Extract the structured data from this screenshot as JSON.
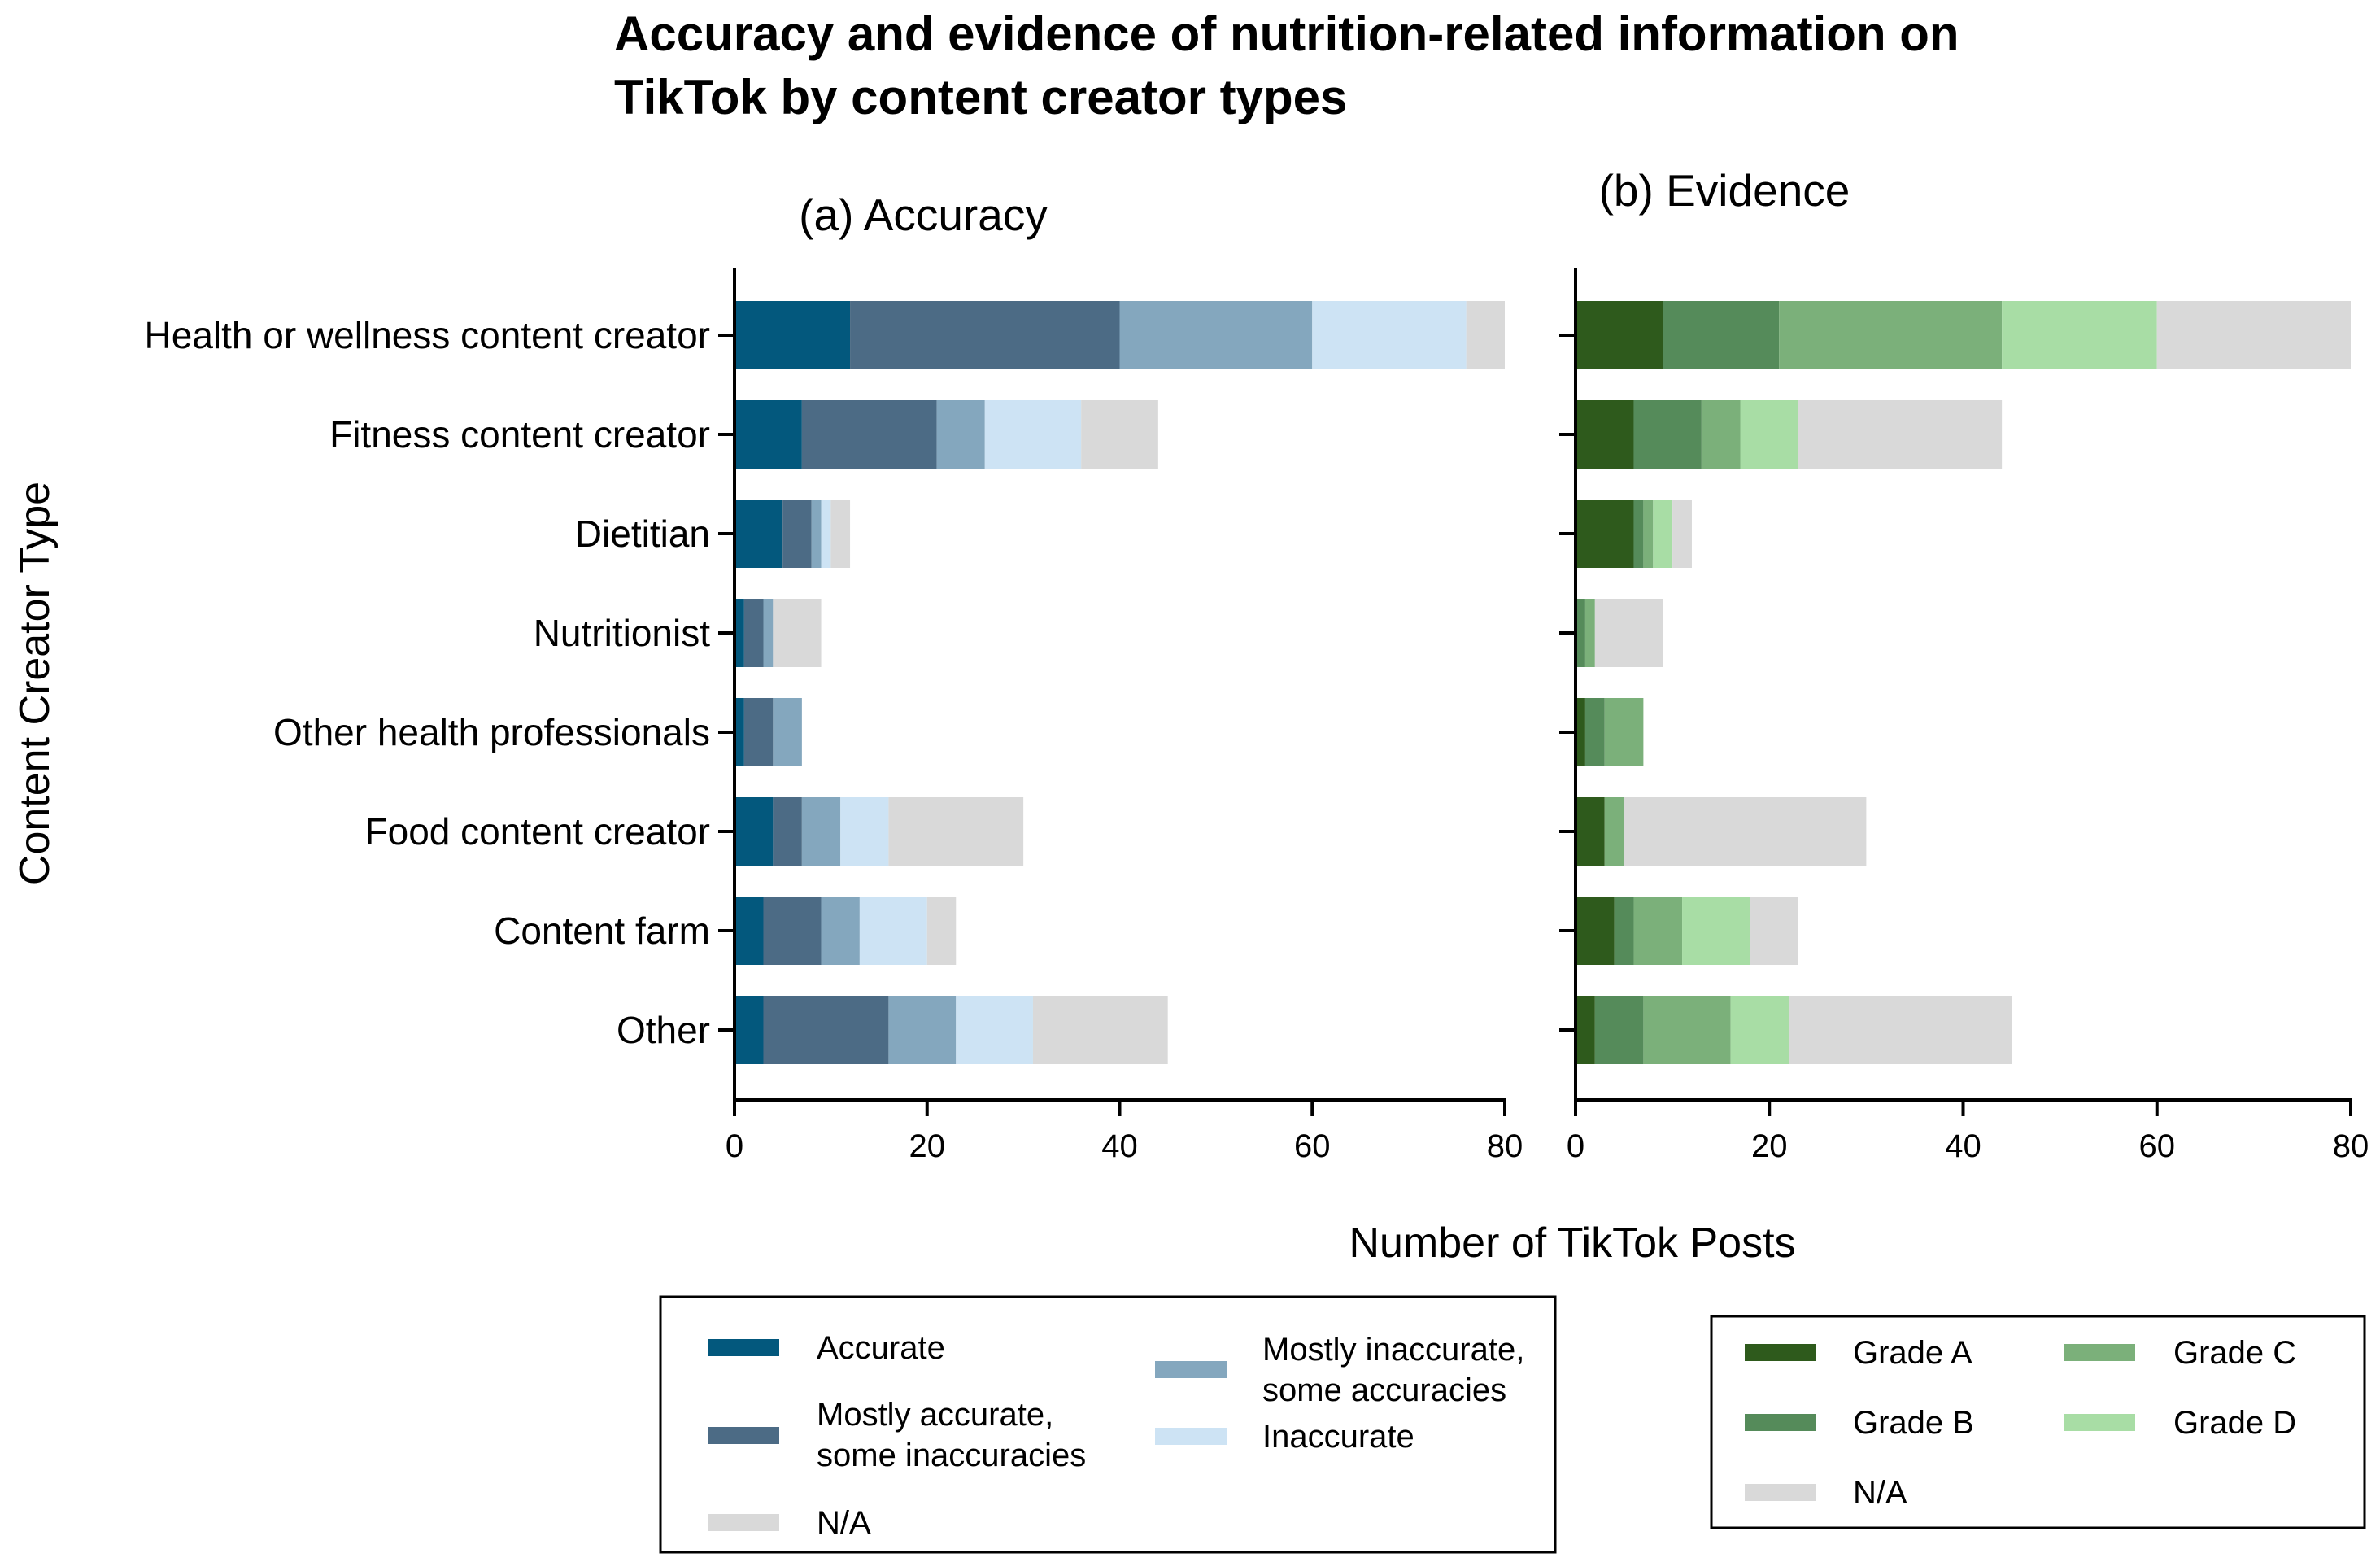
{
  "title_lines": [
    "Accuracy and evidence of nutrition-related information on",
    "TikTok by content creator types"
  ],
  "chart_data": [
    {
      "type": "bar",
      "orientation": "horizontal",
      "stacked": true,
      "title": "(a) Accuracy",
      "ylabel": "Content Creator Type",
      "xlabel": "Number of TikTok Posts",
      "xlim": [
        0,
        80
      ],
      "xticks": [
        "0",
        "20",
        "40",
        "60",
        "80"
      ],
      "categories": [
        "Health or wellness content creator",
        "Fitness content creator",
        "Dietitian",
        "Nutritionist",
        "Other health professionals",
        "Food content creator",
        "Content farm",
        "Other"
      ],
      "series": [
        {
          "name": "Accurate",
          "color": "#03587d",
          "values": [
            12,
            7,
            5,
            1,
            1,
            4,
            3,
            3
          ]
        },
        {
          "name": "Mostly accurate, some inaccuracies",
          "color": "#4c6b85",
          "values": [
            28,
            14,
            3,
            2,
            3,
            3,
            6,
            13
          ]
        },
        {
          "name": "Mostly inaccurate, some accuracies",
          "color": "#84a7be",
          "values": [
            20,
            5,
            1,
            1,
            3,
            4,
            4,
            7
          ]
        },
        {
          "name": "Inaccurate",
          "color": "#cde3f4",
          "values": [
            16,
            10,
            1,
            0,
            0,
            5,
            7,
            8
          ]
        },
        {
          "name": "N/A",
          "color": "#d9d9d9",
          "values": [
            4,
            8,
            2,
            5,
            0,
            14,
            3,
            14
          ]
        }
      ],
      "legend_order": [
        0,
        1,
        4,
        2,
        3
      ]
    },
    {
      "type": "bar",
      "orientation": "horizontal",
      "stacked": true,
      "title": "(b) Evidence",
      "xlabel": "Number of TikTok Posts",
      "xlim": [
        0,
        80
      ],
      "xticks": [
        "0",
        "20",
        "40",
        "60",
        "80"
      ],
      "categories": [
        "Health or wellness content creator",
        "Fitness content creator",
        "Dietitian",
        "Nutritionist",
        "Other health professionals",
        "Food content creator",
        "Content farm",
        "Other"
      ],
      "series": [
        {
          "name": "Grade A",
          "color": "#2e5a1c",
          "values": [
            9,
            6,
            6,
            0,
            1,
            3,
            4,
            2
          ]
        },
        {
          "name": "Grade B",
          "color": "#558b5a",
          "values": [
            12,
            7,
            1,
            1,
            2,
            0,
            2,
            5
          ]
        },
        {
          "name": "Grade C",
          "color": "#7bb07a",
          "values": [
            23,
            4,
            1,
            1,
            4,
            2,
            5,
            9
          ]
        },
        {
          "name": "Grade D",
          "color": "#a8dda5",
          "values": [
            16,
            6,
            2,
            0,
            0,
            0,
            7,
            6
          ]
        },
        {
          "name": "N/A",
          "color": "#d9d9d9",
          "values": [
            20,
            21,
            2,
            7,
            0,
            25,
            5,
            23
          ]
        }
      ],
      "legend_order": [
        0,
        1,
        4,
        2,
        3
      ]
    }
  ]
}
